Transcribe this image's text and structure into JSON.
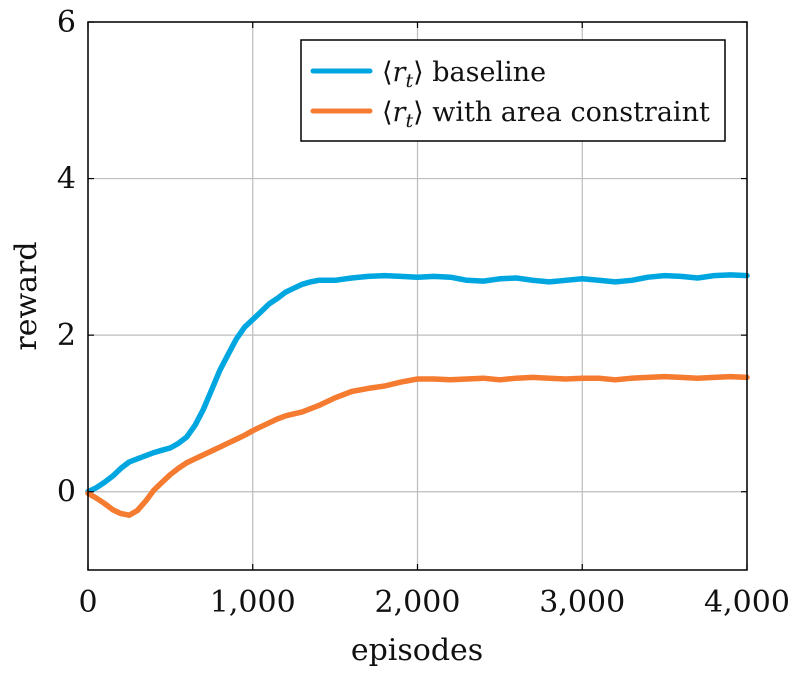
{
  "chart_data": {
    "type": "line",
    "xlabel": "episodes",
    "ylabel": "reward",
    "xlim": [
      0,
      4000
    ],
    "ylim": [
      -1,
      6
    ],
    "x_ticks": [
      0,
      1000,
      2000,
      3000,
      4000
    ],
    "x_tick_labels": [
      "0",
      "1,000",
      "2,000",
      "3,000",
      "4,000"
    ],
    "y_ticks": [
      0,
      2,
      4,
      6
    ],
    "y_tick_labels": [
      "0",
      "2",
      "4",
      "6"
    ],
    "grid": true,
    "legend_position": "top-right",
    "series": [
      {
        "name": "⟨r_t⟩ baseline",
        "legend_prefix": "⟨",
        "legend_symbol": "r",
        "legend_subscript": "t",
        "legend_suffix": "⟩ baseline",
        "color": "#00A6E0",
        "x": [
          0,
          50,
          100,
          150,
          200,
          250,
          300,
          350,
          400,
          450,
          500,
          550,
          600,
          650,
          700,
          750,
          800,
          850,
          900,
          950,
          1000,
          1050,
          1100,
          1150,
          1200,
          1250,
          1300,
          1350,
          1400,
          1450,
          1500,
          1600,
          1700,
          1800,
          1900,
          2000,
          2100,
          2200,
          2300,
          2400,
          2500,
          2600,
          2700,
          2800,
          2900,
          3000,
          3100,
          3200,
          3300,
          3400,
          3500,
          3600,
          3700,
          3800,
          3900,
          4000
        ],
        "y": [
          0.0,
          0.05,
          0.12,
          0.2,
          0.3,
          0.38,
          0.42,
          0.46,
          0.5,
          0.53,
          0.56,
          0.62,
          0.7,
          0.85,
          1.05,
          1.3,
          1.55,
          1.75,
          1.95,
          2.1,
          2.2,
          2.3,
          2.4,
          2.47,
          2.55,
          2.6,
          2.65,
          2.68,
          2.7,
          2.7,
          2.7,
          2.73,
          2.75,
          2.76,
          2.75,
          2.74,
          2.75,
          2.74,
          2.7,
          2.69,
          2.72,
          2.73,
          2.7,
          2.68,
          2.7,
          2.72,
          2.7,
          2.68,
          2.7,
          2.74,
          2.76,
          2.75,
          2.73,
          2.76,
          2.77,
          2.76
        ]
      },
      {
        "name": "⟨r_t⟩ with area constraint",
        "legend_prefix": "⟨",
        "legend_symbol": "r",
        "legend_subscript": "t",
        "legend_suffix": "⟩ with area constraint",
        "color": "#F47B30",
        "x": [
          0,
          50,
          100,
          150,
          200,
          250,
          300,
          350,
          400,
          450,
          500,
          550,
          600,
          650,
          700,
          750,
          800,
          850,
          900,
          950,
          1000,
          1050,
          1100,
          1150,
          1200,
          1300,
          1400,
          1500,
          1600,
          1700,
          1800,
          1900,
          2000,
          2100,
          2200,
          2300,
          2400,
          2500,
          2600,
          2700,
          2800,
          2900,
          3000,
          3100,
          3200,
          3300,
          3400,
          3500,
          3600,
          3700,
          3800,
          3900,
          4000
        ],
        "y": [
          -0.02,
          -0.08,
          -0.15,
          -0.23,
          -0.28,
          -0.3,
          -0.24,
          -0.12,
          0.02,
          0.12,
          0.22,
          0.3,
          0.37,
          0.42,
          0.47,
          0.52,
          0.57,
          0.62,
          0.67,
          0.72,
          0.78,
          0.83,
          0.88,
          0.93,
          0.97,
          1.02,
          1.1,
          1.2,
          1.28,
          1.32,
          1.35,
          1.4,
          1.44,
          1.44,
          1.43,
          1.44,
          1.45,
          1.43,
          1.45,
          1.46,
          1.45,
          1.44,
          1.45,
          1.45,
          1.43,
          1.45,
          1.46,
          1.47,
          1.46,
          1.45,
          1.46,
          1.47,
          1.46
        ]
      }
    ]
  }
}
